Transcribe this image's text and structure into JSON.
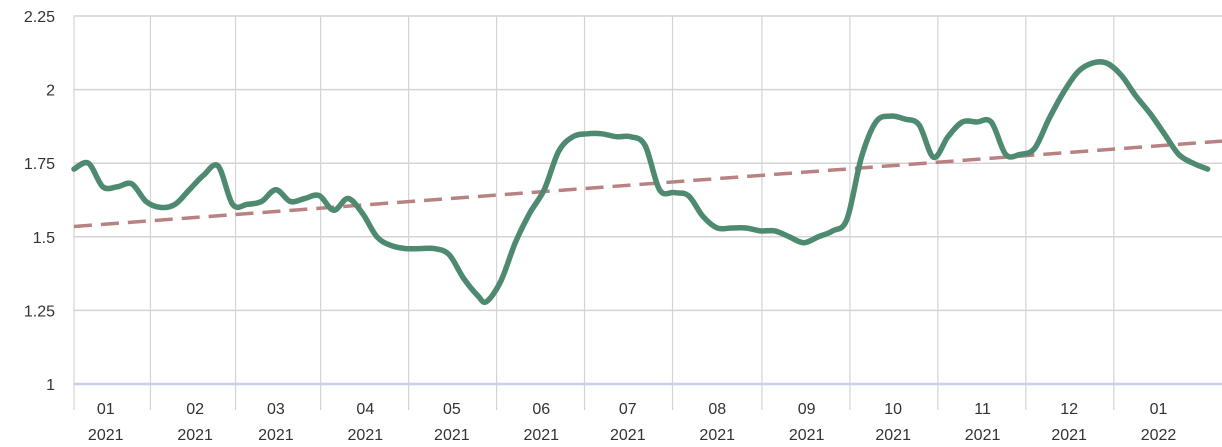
{
  "chart_data": {
    "type": "line",
    "title": "",
    "xlabel": "",
    "ylabel": "",
    "ylim": [
      1,
      2.25
    ],
    "y_ticks": [
      "1",
      "1.25",
      "1.5",
      "1.75",
      "2",
      "2.25"
    ],
    "y_tick_values": [
      1,
      1.25,
      1.5,
      1.75,
      2,
      2.25
    ],
    "x_ticks": [
      {
        "month": "01",
        "year": "2021",
        "date": "2021-01-01"
      },
      {
        "month": "02",
        "year": "2021",
        "date": "2021-02-01"
      },
      {
        "month": "03",
        "year": "2021",
        "date": "2021-03-01"
      },
      {
        "month": "04",
        "year": "2021",
        "date": "2021-04-01"
      },
      {
        "month": "05",
        "year": "2021",
        "date": "2021-05-01"
      },
      {
        "month": "06",
        "year": "2021",
        "date": "2021-06-01"
      },
      {
        "month": "07",
        "year": "2021",
        "date": "2021-07-01"
      },
      {
        "month": "08",
        "year": "2021",
        "date": "2021-08-01"
      },
      {
        "month": "09",
        "year": "2021",
        "date": "2021-09-01"
      },
      {
        "month": "10",
        "year": "2021",
        "date": "2021-10-01"
      },
      {
        "month": "11",
        "year": "2021",
        "date": "2021-11-01"
      },
      {
        "month": "12",
        "year": "2021",
        "date": "2021-12-01"
      },
      {
        "month": "01",
        "year": "2022",
        "date": "2022-01-01"
      }
    ],
    "x_range": [
      "2020-12-21",
      "2022-01-23"
    ],
    "grid": true,
    "legend": "none",
    "series": [
      {
        "style": "solid",
        "color": "#4e8a70",
        "points": [
          [
            "2020-12-21",
            1.73
          ],
          [
            "2020-12-26",
            1.75
          ],
          [
            "2020-12-31",
            1.67
          ],
          [
            "2021-01-05",
            1.67
          ],
          [
            "2021-01-10",
            1.68
          ],
          [
            "2021-01-15",
            1.62
          ],
          [
            "2021-01-20",
            1.6
          ],
          [
            "2021-01-25",
            1.61
          ],
          [
            "2021-01-30",
            1.66
          ],
          [
            "2021-02-04",
            1.71
          ],
          [
            "2021-02-09",
            1.74
          ],
          [
            "2021-02-14",
            1.61
          ],
          [
            "2021-02-19",
            1.61
          ],
          [
            "2021-02-24",
            1.62
          ],
          [
            "2021-03-01",
            1.66
          ],
          [
            "2021-03-06",
            1.62
          ],
          [
            "2021-03-11",
            1.63
          ],
          [
            "2021-03-16",
            1.64
          ],
          [
            "2021-03-21",
            1.59
          ],
          [
            "2021-03-26",
            1.63
          ],
          [
            "2021-03-31",
            1.58
          ],
          [
            "2021-04-05",
            1.5
          ],
          [
            "2021-04-10",
            1.47
          ],
          [
            "2021-04-15",
            1.46
          ],
          [
            "2021-04-20",
            1.46
          ],
          [
            "2021-04-25",
            1.46
          ],
          [
            "2021-04-30",
            1.44
          ],
          [
            "2021-05-05",
            1.36
          ],
          [
            "2021-05-10",
            1.3
          ],
          [
            "2021-05-13",
            1.28
          ],
          [
            "2021-05-18",
            1.35
          ],
          [
            "2021-05-23",
            1.48
          ],
          [
            "2021-05-28",
            1.58
          ],
          [
            "2021-06-02",
            1.66
          ],
          [
            "2021-06-07",
            1.79
          ],
          [
            "2021-06-12",
            1.84
          ],
          [
            "2021-06-17",
            1.85
          ],
          [
            "2021-06-22",
            1.85
          ],
          [
            "2021-06-27",
            1.84
          ],
          [
            "2021-07-02",
            1.84
          ],
          [
            "2021-07-07",
            1.81
          ],
          [
            "2021-07-12",
            1.66
          ],
          [
            "2021-07-17",
            1.65
          ],
          [
            "2021-07-22",
            1.64
          ],
          [
            "2021-07-27",
            1.57
          ],
          [
            "2021-08-01",
            1.53
          ],
          [
            "2021-08-06",
            1.53
          ],
          [
            "2021-08-11",
            1.53
          ],
          [
            "2021-08-16",
            1.52
          ],
          [
            "2021-08-21",
            1.52
          ],
          [
            "2021-08-26",
            1.5
          ],
          [
            "2021-08-31",
            1.48
          ],
          [
            "2021-09-05",
            1.5
          ],
          [
            "2021-09-10",
            1.52
          ],
          [
            "2021-09-15",
            1.56
          ],
          [
            "2021-09-20",
            1.77
          ],
          [
            "2021-09-25",
            1.89
          ],
          [
            "2021-09-30",
            1.91
          ],
          [
            "2021-10-05",
            1.9
          ],
          [
            "2021-10-10",
            1.88
          ],
          [
            "2021-10-15",
            1.77
          ],
          [
            "2021-10-20",
            1.84
          ],
          [
            "2021-10-25",
            1.89
          ],
          [
            "2021-10-30",
            1.89
          ],
          [
            "2021-11-04",
            1.89
          ],
          [
            "2021-11-09",
            1.78
          ],
          [
            "2021-11-14",
            1.78
          ],
          [
            "2021-11-19",
            1.8
          ],
          [
            "2021-11-24",
            1.9
          ],
          [
            "2021-11-29",
            1.99
          ],
          [
            "2021-12-04",
            2.06
          ],
          [
            "2021-12-09",
            2.09
          ],
          [
            "2021-12-14",
            2.09
          ],
          [
            "2021-12-19",
            2.05
          ],
          [
            "2021-12-24",
            1.98
          ],
          [
            "2021-12-29",
            1.92
          ],
          [
            "2022-01-03",
            1.85
          ],
          [
            "2022-01-08",
            1.78
          ],
          [
            "2022-01-13",
            1.75
          ],
          [
            "2022-01-18",
            1.73
          ]
        ]
      },
      {
        "style": "dashed",
        "color": "#b88282",
        "points": [
          [
            "2020-12-21",
            1.535
          ],
          [
            "2022-01-23",
            1.825
          ]
        ]
      }
    ]
  },
  "colors": {
    "grid": "#d4d4d4",
    "x_axis_line": "#c8d0e4",
    "tick_text": "#333333"
  }
}
